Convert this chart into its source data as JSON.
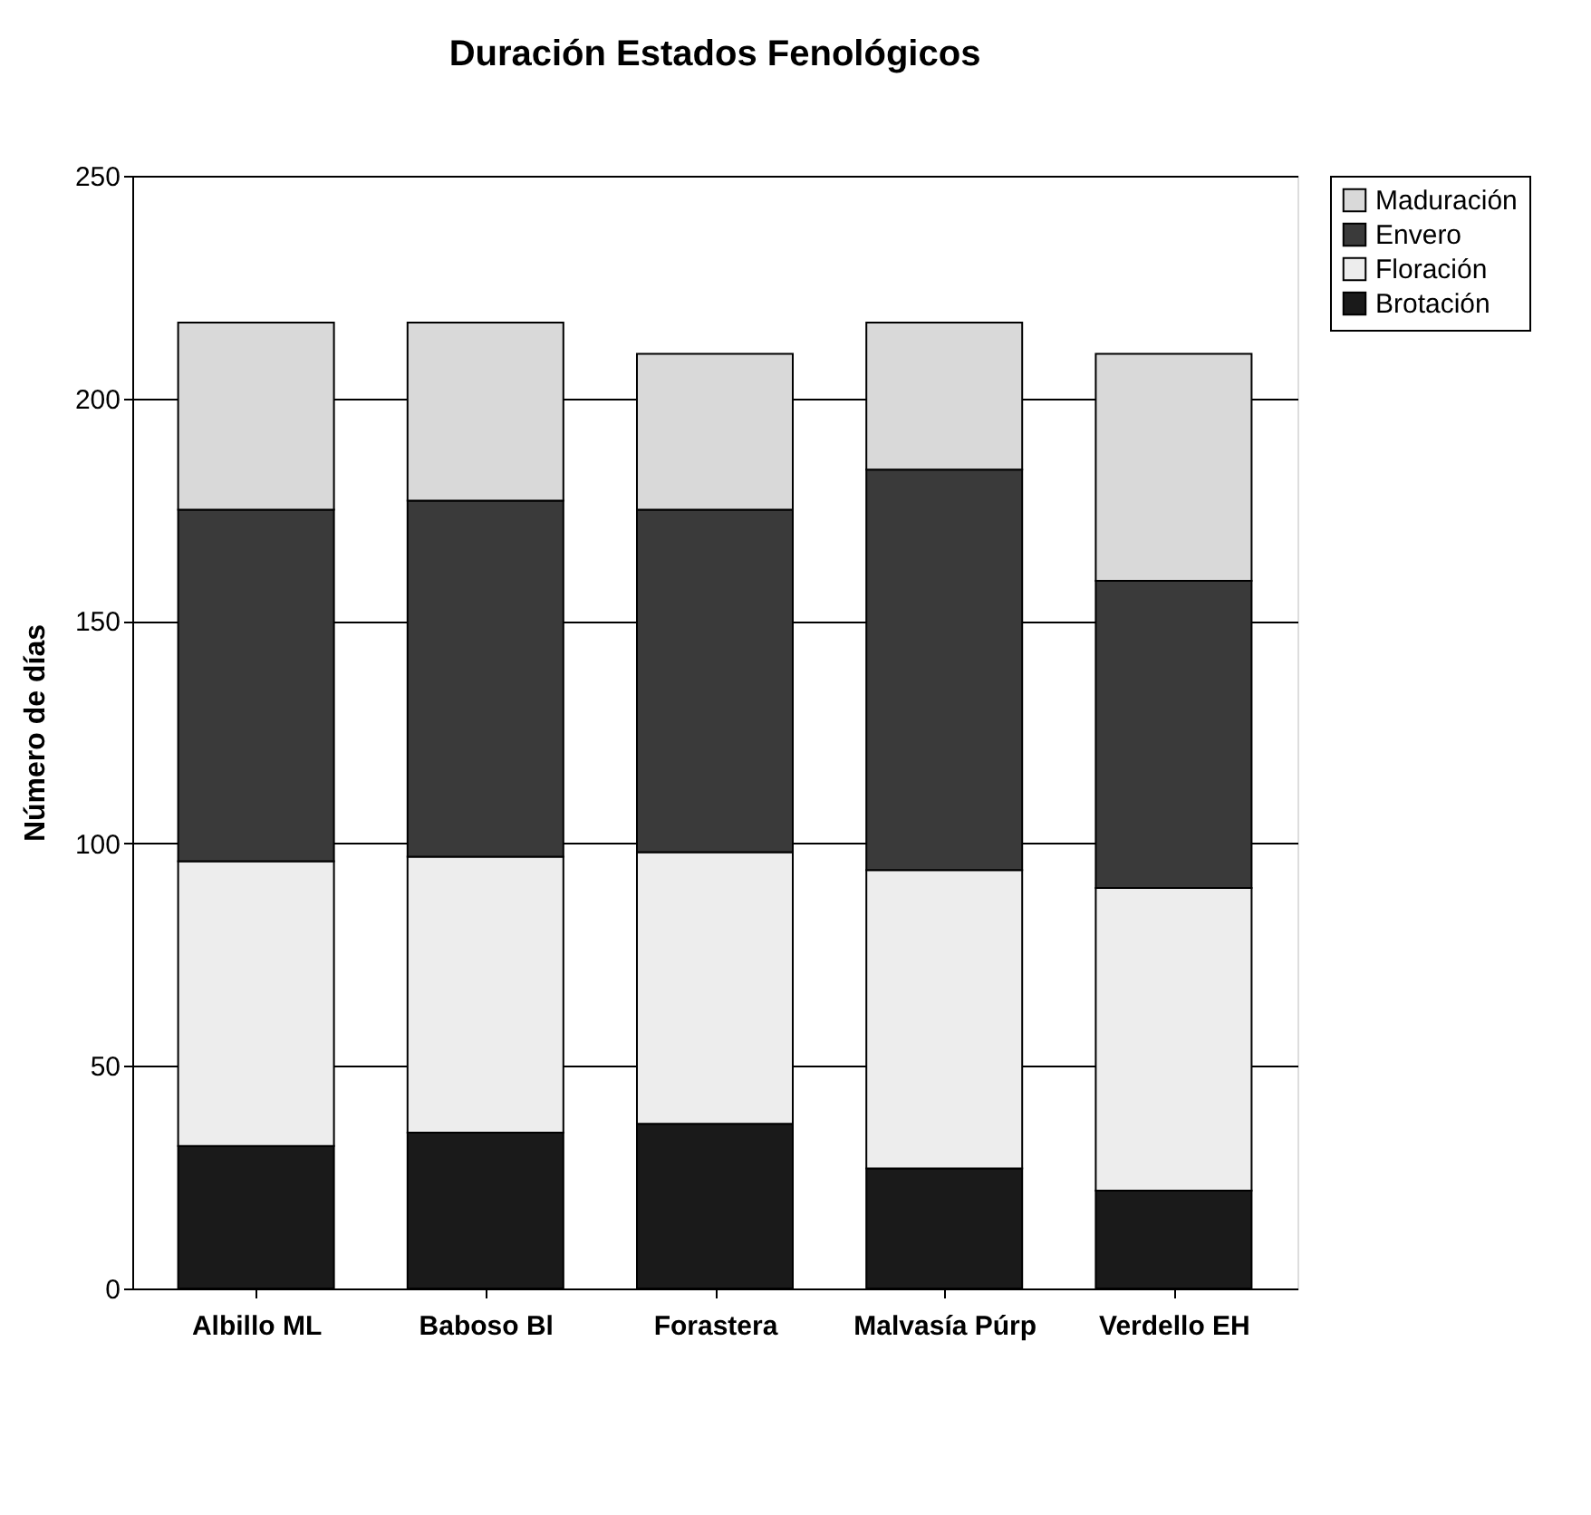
{
  "chart_data": {
    "type": "bar",
    "title": "Duración Estados Fenológicos",
    "ylabel": "Número de días",
    "stacked": true,
    "categories": [
      "Albillo ML",
      "Baboso Bl",
      "Forastera",
      "Malvasía Púrp",
      "Verdello EH"
    ],
    "series": [
      {
        "name": "Brotación",
        "color": "#1a1a1a",
        "values": [
          32,
          35,
          37,
          27,
          22
        ]
      },
      {
        "name": "Floración",
        "color": "#ededed",
        "values": [
          64,
          62,
          61,
          67,
          68
        ]
      },
      {
        "name": "Envero",
        "color": "#3a3a3a",
        "values": [
          79,
          80,
          77,
          90,
          69
        ]
      },
      {
        "name": "Maduración",
        "color": "#d9d9d9",
        "values": [
          42,
          40,
          35,
          33,
          51
        ]
      }
    ],
    "ylim": [
      0,
      250
    ],
    "yticks": [
      0,
      50,
      100,
      150,
      200,
      250
    ],
    "grid": "y",
    "legend": "right"
  }
}
